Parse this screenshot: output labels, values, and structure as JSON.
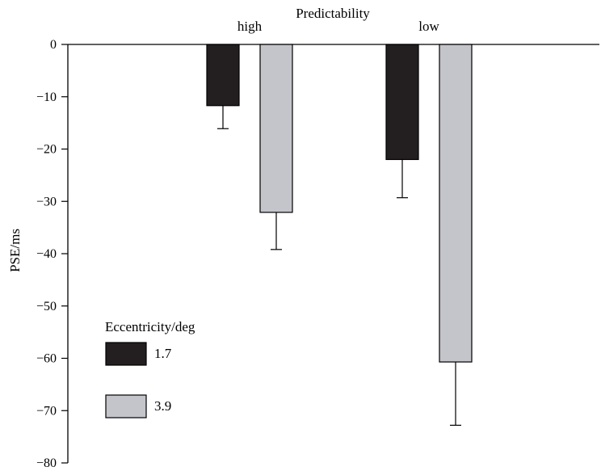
{
  "chart_data": {
    "type": "bar",
    "title": "Predictability",
    "xlabel": "Predictability",
    "ylabel": "PSE/ms",
    "ylim": [
      -80,
      0
    ],
    "yticks": [
      0,
      -10,
      -20,
      -30,
      -40,
      -50,
      -60,
      -70,
      -80
    ],
    "ytick_labels": [
      "0",
      "−10",
      "−20",
      "−30",
      "−40",
      "−50",
      "−60",
      "−70",
      "−80"
    ],
    "categories": [
      "high",
      "low"
    ],
    "categories_position": "top",
    "series": [
      {
        "name": "1.7",
        "color": "#231f20",
        "values": [
          -11.7,
          -22.0
        ],
        "error": [
          4.4,
          7.3
        ]
      },
      {
        "name": "3.9",
        "color": "#c4c5ca",
        "values": [
          -32.1,
          -60.7
        ],
        "error": [
          7.1,
          12.1
        ]
      }
    ],
    "legend": {
      "title": "Eccentricity/deg",
      "position": "bottom-left",
      "items": [
        "1.7",
        "3.9"
      ]
    },
    "grid": false
  }
}
